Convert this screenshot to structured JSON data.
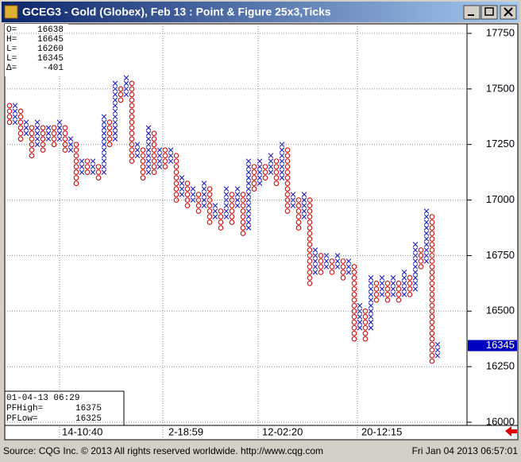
{
  "window_title": "GCEG3 - Gold (Globex), Feb 13 : Point & Figure 25x3,Ticks",
  "info": [
    [
      "O=",
      "16638"
    ],
    [
      "H=",
      "16645"
    ],
    [
      "L=",
      "16260"
    ],
    [
      "L=",
      "16345"
    ],
    [
      "Δ=",
      "-401"
    ]
  ],
  "cursor_box": {
    "time": "01-04-13  06:29",
    "rows": [
      [
        "PFHigh=",
        "16375"
      ],
      [
        "PFLow=",
        "16325"
      ]
    ]
  },
  "footer": {
    "source": "Source: CQG Inc. © 2013 All rights reserved worldwide.  http://www.cqg.com",
    "timestamp": "Fri Jan 04 2013 06:57:01"
  },
  "chart_data": {
    "type": "point_figure",
    "box_size": 25,
    "x_color": "#2020c0",
    "o_color": "#cc1010",
    "ylim": [
      16000,
      17750
    ],
    "yticks": [
      16000,
      16250,
      16500,
      16750,
      17000,
      17250,
      17500,
      17750
    ],
    "grid": true,
    "last_value": 16345,
    "xlabels": [
      "14-10:40",
      "2-18:59",
      "12-02:20",
      "20-12:15"
    ],
    "columns": [
      {
        "kind": "O",
        "low": 17350,
        "high": 17425
      },
      {
        "kind": "X",
        "low": 17350,
        "high": 17425
      },
      {
        "kind": "O",
        "low": 17275,
        "high": 17400
      },
      {
        "kind": "X",
        "low": 17300,
        "high": 17350
      },
      {
        "kind": "O",
        "low": 17200,
        "high": 17325
      },
      {
        "kind": "X",
        "low": 17250,
        "high": 17350
      },
      {
        "kind": "O",
        "low": 17225,
        "high": 17325
      },
      {
        "kind": "X",
        "low": 17275,
        "high": 17325
      },
      {
        "kind": "O",
        "low": 17250,
        "high": 17325
      },
      {
        "kind": "X",
        "low": 17275,
        "high": 17350
      },
      {
        "kind": "O",
        "low": 17225,
        "high": 17325
      },
      {
        "kind": "X",
        "low": 17225,
        "high": 17275
      },
      {
        "kind": "O",
        "low": 17075,
        "high": 17250
      },
      {
        "kind": "X",
        "low": 17125,
        "high": 17175
      },
      {
        "kind": "O",
        "low": 17125,
        "high": 17175
      },
      {
        "kind": "X",
        "low": 17125,
        "high": 17175
      },
      {
        "kind": "O",
        "low": 17100,
        "high": 17150
      },
      {
        "kind": "X",
        "low": 17125,
        "high": 17375
      },
      {
        "kind": "O",
        "low": 17250,
        "high": 17350
      },
      {
        "kind": "X",
        "low": 17275,
        "high": 17525
      },
      {
        "kind": "O",
        "low": 17450,
        "high": 17500
      },
      {
        "kind": "X",
        "low": 17475,
        "high": 17550
      },
      {
        "kind": "O",
        "low": 17175,
        "high": 17525
      },
      {
        "kind": "X",
        "low": 17200,
        "high": 17250
      },
      {
        "kind": "O",
        "low": 17100,
        "high": 17225
      },
      {
        "kind": "X",
        "low": 17125,
        "high": 17325
      },
      {
        "kind": "O",
        "low": 17125,
        "high": 17300
      },
      {
        "kind": "X",
        "low": 17150,
        "high": 17225
      },
      {
        "kind": "O",
        "low": 17150,
        "high": 17225
      },
      {
        "kind": "X",
        "low": 17175,
        "high": 17225
      },
      {
        "kind": "O",
        "low": 17000,
        "high": 17200
      },
      {
        "kind": "X",
        "low": 17025,
        "high": 17100
      },
      {
        "kind": "O",
        "low": 16975,
        "high": 17075
      },
      {
        "kind": "X",
        "low": 17000,
        "high": 17050
      },
      {
        "kind": "O",
        "low": 16950,
        "high": 17025
      },
      {
        "kind": "X",
        "low": 16975,
        "high": 17075
      },
      {
        "kind": "O",
        "low": 16900,
        "high": 17050
      },
      {
        "kind": "X",
        "low": 16925,
        "high": 16975
      },
      {
        "kind": "O",
        "low": 16875,
        "high": 16950
      },
      {
        "kind": "X",
        "low": 16925,
        "high": 17050
      },
      {
        "kind": "O",
        "low": 16900,
        "high": 17025
      },
      {
        "kind": "X",
        "low": 16975,
        "high": 17050
      },
      {
        "kind": "O",
        "low": 16850,
        "high": 17025
      },
      {
        "kind": "X",
        "low": 16875,
        "high": 17175
      },
      {
        "kind": "O",
        "low": 17050,
        "high": 17150
      },
      {
        "kind": "X",
        "low": 17075,
        "high": 17175
      },
      {
        "kind": "O",
        "low": 17100,
        "high": 17150
      },
      {
        "kind": "X",
        "low": 17125,
        "high": 17200
      },
      {
        "kind": "O",
        "low": 17075,
        "high": 17175
      },
      {
        "kind": "X",
        "low": 17100,
        "high": 17250
      },
      {
        "kind": "O",
        "low": 16950,
        "high": 17225
      },
      {
        "kind": "X",
        "low": 16975,
        "high": 17025
      },
      {
        "kind": "O",
        "low": 16875,
        "high": 17000
      },
      {
        "kind": "X",
        "low": 16925,
        "high": 17025
      },
      {
        "kind": "O",
        "low": 16625,
        "high": 17000
      },
      {
        "kind": "X",
        "low": 16675,
        "high": 16775
      },
      {
        "kind": "O",
        "low": 16675,
        "high": 16750
      },
      {
        "kind": "X",
        "low": 16700,
        "high": 16750
      },
      {
        "kind": "O",
        "low": 16675,
        "high": 16725
      },
      {
        "kind": "X",
        "low": 16700,
        "high": 16750
      },
      {
        "kind": "O",
        "low": 16650,
        "high": 16725
      },
      {
        "kind": "X",
        "low": 16675,
        "high": 16725
      },
      {
        "kind": "O",
        "low": 16375,
        "high": 16700
      },
      {
        "kind": "X",
        "low": 16425,
        "high": 16525
      },
      {
        "kind": "O",
        "low": 16375,
        "high": 16500
      },
      {
        "kind": "X",
        "low": 16425,
        "high": 16650
      },
      {
        "kind": "O",
        "low": 16550,
        "high": 16625
      },
      {
        "kind": "X",
        "low": 16575,
        "high": 16650
      },
      {
        "kind": "O",
        "low": 16550,
        "high": 16625
      },
      {
        "kind": "X",
        "low": 16575,
        "high": 16650
      },
      {
        "kind": "O",
        "low": 16550,
        "high": 16625
      },
      {
        "kind": "X",
        "low": 16575,
        "high": 16675
      },
      {
        "kind": "O",
        "low": 16575,
        "high": 16650
      },
      {
        "kind": "X",
        "low": 16600,
        "high": 16800
      },
      {
        "kind": "O",
        "low": 16700,
        "high": 16775
      },
      {
        "kind": "X",
        "low": 16725,
        "high": 16950
      },
      {
        "kind": "O",
        "low": 16275,
        "high": 16925
      },
      {
        "kind": "X",
        "low": 16300,
        "high": 16350
      }
    ]
  }
}
